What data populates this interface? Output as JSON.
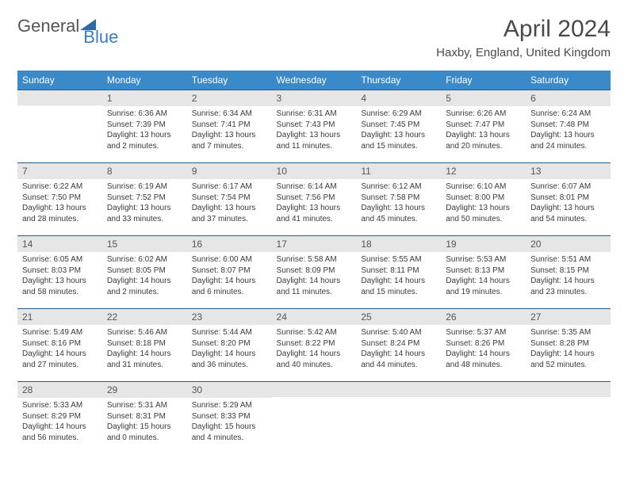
{
  "logo": {
    "text_general": "General",
    "text_blue": "Blue",
    "icon_color": "#2e6aa8"
  },
  "title": "April 2024",
  "location": "Haxby, England, United Kingdom",
  "colors": {
    "header_bg": "#3a8ac9",
    "header_text": "#ffffff",
    "week_border": "#2a5b8a",
    "daynum_bg": "#e6e6e6",
    "daynum_text": "#555555",
    "info_text": "#3a3a3a"
  },
  "day_headers": [
    "Sunday",
    "Monday",
    "Tuesday",
    "Wednesday",
    "Thursday",
    "Friday",
    "Saturday"
  ],
  "weeks": [
    [
      {
        "num": "",
        "sunrise": "",
        "sunset": "",
        "daylight": ""
      },
      {
        "num": "1",
        "sunrise": "Sunrise: 6:36 AM",
        "sunset": "Sunset: 7:39 PM",
        "daylight": "Daylight: 13 hours and 2 minutes."
      },
      {
        "num": "2",
        "sunrise": "Sunrise: 6:34 AM",
        "sunset": "Sunset: 7:41 PM",
        "daylight": "Daylight: 13 hours and 7 minutes."
      },
      {
        "num": "3",
        "sunrise": "Sunrise: 6:31 AM",
        "sunset": "Sunset: 7:43 PM",
        "daylight": "Daylight: 13 hours and 11 minutes."
      },
      {
        "num": "4",
        "sunrise": "Sunrise: 6:29 AM",
        "sunset": "Sunset: 7:45 PM",
        "daylight": "Daylight: 13 hours and 15 minutes."
      },
      {
        "num": "5",
        "sunrise": "Sunrise: 6:26 AM",
        "sunset": "Sunset: 7:47 PM",
        "daylight": "Daylight: 13 hours and 20 minutes."
      },
      {
        "num": "6",
        "sunrise": "Sunrise: 6:24 AM",
        "sunset": "Sunset: 7:48 PM",
        "daylight": "Daylight: 13 hours and 24 minutes."
      }
    ],
    [
      {
        "num": "7",
        "sunrise": "Sunrise: 6:22 AM",
        "sunset": "Sunset: 7:50 PM",
        "daylight": "Daylight: 13 hours and 28 minutes."
      },
      {
        "num": "8",
        "sunrise": "Sunrise: 6:19 AM",
        "sunset": "Sunset: 7:52 PM",
        "daylight": "Daylight: 13 hours and 33 minutes."
      },
      {
        "num": "9",
        "sunrise": "Sunrise: 6:17 AM",
        "sunset": "Sunset: 7:54 PM",
        "daylight": "Daylight: 13 hours and 37 minutes."
      },
      {
        "num": "10",
        "sunrise": "Sunrise: 6:14 AM",
        "sunset": "Sunset: 7:56 PM",
        "daylight": "Daylight: 13 hours and 41 minutes."
      },
      {
        "num": "11",
        "sunrise": "Sunrise: 6:12 AM",
        "sunset": "Sunset: 7:58 PM",
        "daylight": "Daylight: 13 hours and 45 minutes."
      },
      {
        "num": "12",
        "sunrise": "Sunrise: 6:10 AM",
        "sunset": "Sunset: 8:00 PM",
        "daylight": "Daylight: 13 hours and 50 minutes."
      },
      {
        "num": "13",
        "sunrise": "Sunrise: 6:07 AM",
        "sunset": "Sunset: 8:01 PM",
        "daylight": "Daylight: 13 hours and 54 minutes."
      }
    ],
    [
      {
        "num": "14",
        "sunrise": "Sunrise: 6:05 AM",
        "sunset": "Sunset: 8:03 PM",
        "daylight": "Daylight: 13 hours and 58 minutes."
      },
      {
        "num": "15",
        "sunrise": "Sunrise: 6:02 AM",
        "sunset": "Sunset: 8:05 PM",
        "daylight": "Daylight: 14 hours and 2 minutes."
      },
      {
        "num": "16",
        "sunrise": "Sunrise: 6:00 AM",
        "sunset": "Sunset: 8:07 PM",
        "daylight": "Daylight: 14 hours and 6 minutes."
      },
      {
        "num": "17",
        "sunrise": "Sunrise: 5:58 AM",
        "sunset": "Sunset: 8:09 PM",
        "daylight": "Daylight: 14 hours and 11 minutes."
      },
      {
        "num": "18",
        "sunrise": "Sunrise: 5:55 AM",
        "sunset": "Sunset: 8:11 PM",
        "daylight": "Daylight: 14 hours and 15 minutes."
      },
      {
        "num": "19",
        "sunrise": "Sunrise: 5:53 AM",
        "sunset": "Sunset: 8:13 PM",
        "daylight": "Daylight: 14 hours and 19 minutes."
      },
      {
        "num": "20",
        "sunrise": "Sunrise: 5:51 AM",
        "sunset": "Sunset: 8:15 PM",
        "daylight": "Daylight: 14 hours and 23 minutes."
      }
    ],
    [
      {
        "num": "21",
        "sunrise": "Sunrise: 5:49 AM",
        "sunset": "Sunset: 8:16 PM",
        "daylight": "Daylight: 14 hours and 27 minutes."
      },
      {
        "num": "22",
        "sunrise": "Sunrise: 5:46 AM",
        "sunset": "Sunset: 8:18 PM",
        "daylight": "Daylight: 14 hours and 31 minutes."
      },
      {
        "num": "23",
        "sunrise": "Sunrise: 5:44 AM",
        "sunset": "Sunset: 8:20 PM",
        "daylight": "Daylight: 14 hours and 36 minutes."
      },
      {
        "num": "24",
        "sunrise": "Sunrise: 5:42 AM",
        "sunset": "Sunset: 8:22 PM",
        "daylight": "Daylight: 14 hours and 40 minutes."
      },
      {
        "num": "25",
        "sunrise": "Sunrise: 5:40 AM",
        "sunset": "Sunset: 8:24 PM",
        "daylight": "Daylight: 14 hours and 44 minutes."
      },
      {
        "num": "26",
        "sunrise": "Sunrise: 5:37 AM",
        "sunset": "Sunset: 8:26 PM",
        "daylight": "Daylight: 14 hours and 48 minutes."
      },
      {
        "num": "27",
        "sunrise": "Sunrise: 5:35 AM",
        "sunset": "Sunset: 8:28 PM",
        "daylight": "Daylight: 14 hours and 52 minutes."
      }
    ],
    [
      {
        "num": "28",
        "sunrise": "Sunrise: 5:33 AM",
        "sunset": "Sunset: 8:29 PM",
        "daylight": "Daylight: 14 hours and 56 minutes."
      },
      {
        "num": "29",
        "sunrise": "Sunrise: 5:31 AM",
        "sunset": "Sunset: 8:31 PM",
        "daylight": "Daylight: 15 hours and 0 minutes."
      },
      {
        "num": "30",
        "sunrise": "Sunrise: 5:29 AM",
        "sunset": "Sunset: 8:33 PM",
        "daylight": "Daylight: 15 hours and 4 minutes."
      },
      {
        "num": "",
        "sunrise": "",
        "sunset": "",
        "daylight": ""
      },
      {
        "num": "",
        "sunrise": "",
        "sunset": "",
        "daylight": ""
      },
      {
        "num": "",
        "sunrise": "",
        "sunset": "",
        "daylight": ""
      },
      {
        "num": "",
        "sunrise": "",
        "sunset": "",
        "daylight": ""
      }
    ]
  ]
}
